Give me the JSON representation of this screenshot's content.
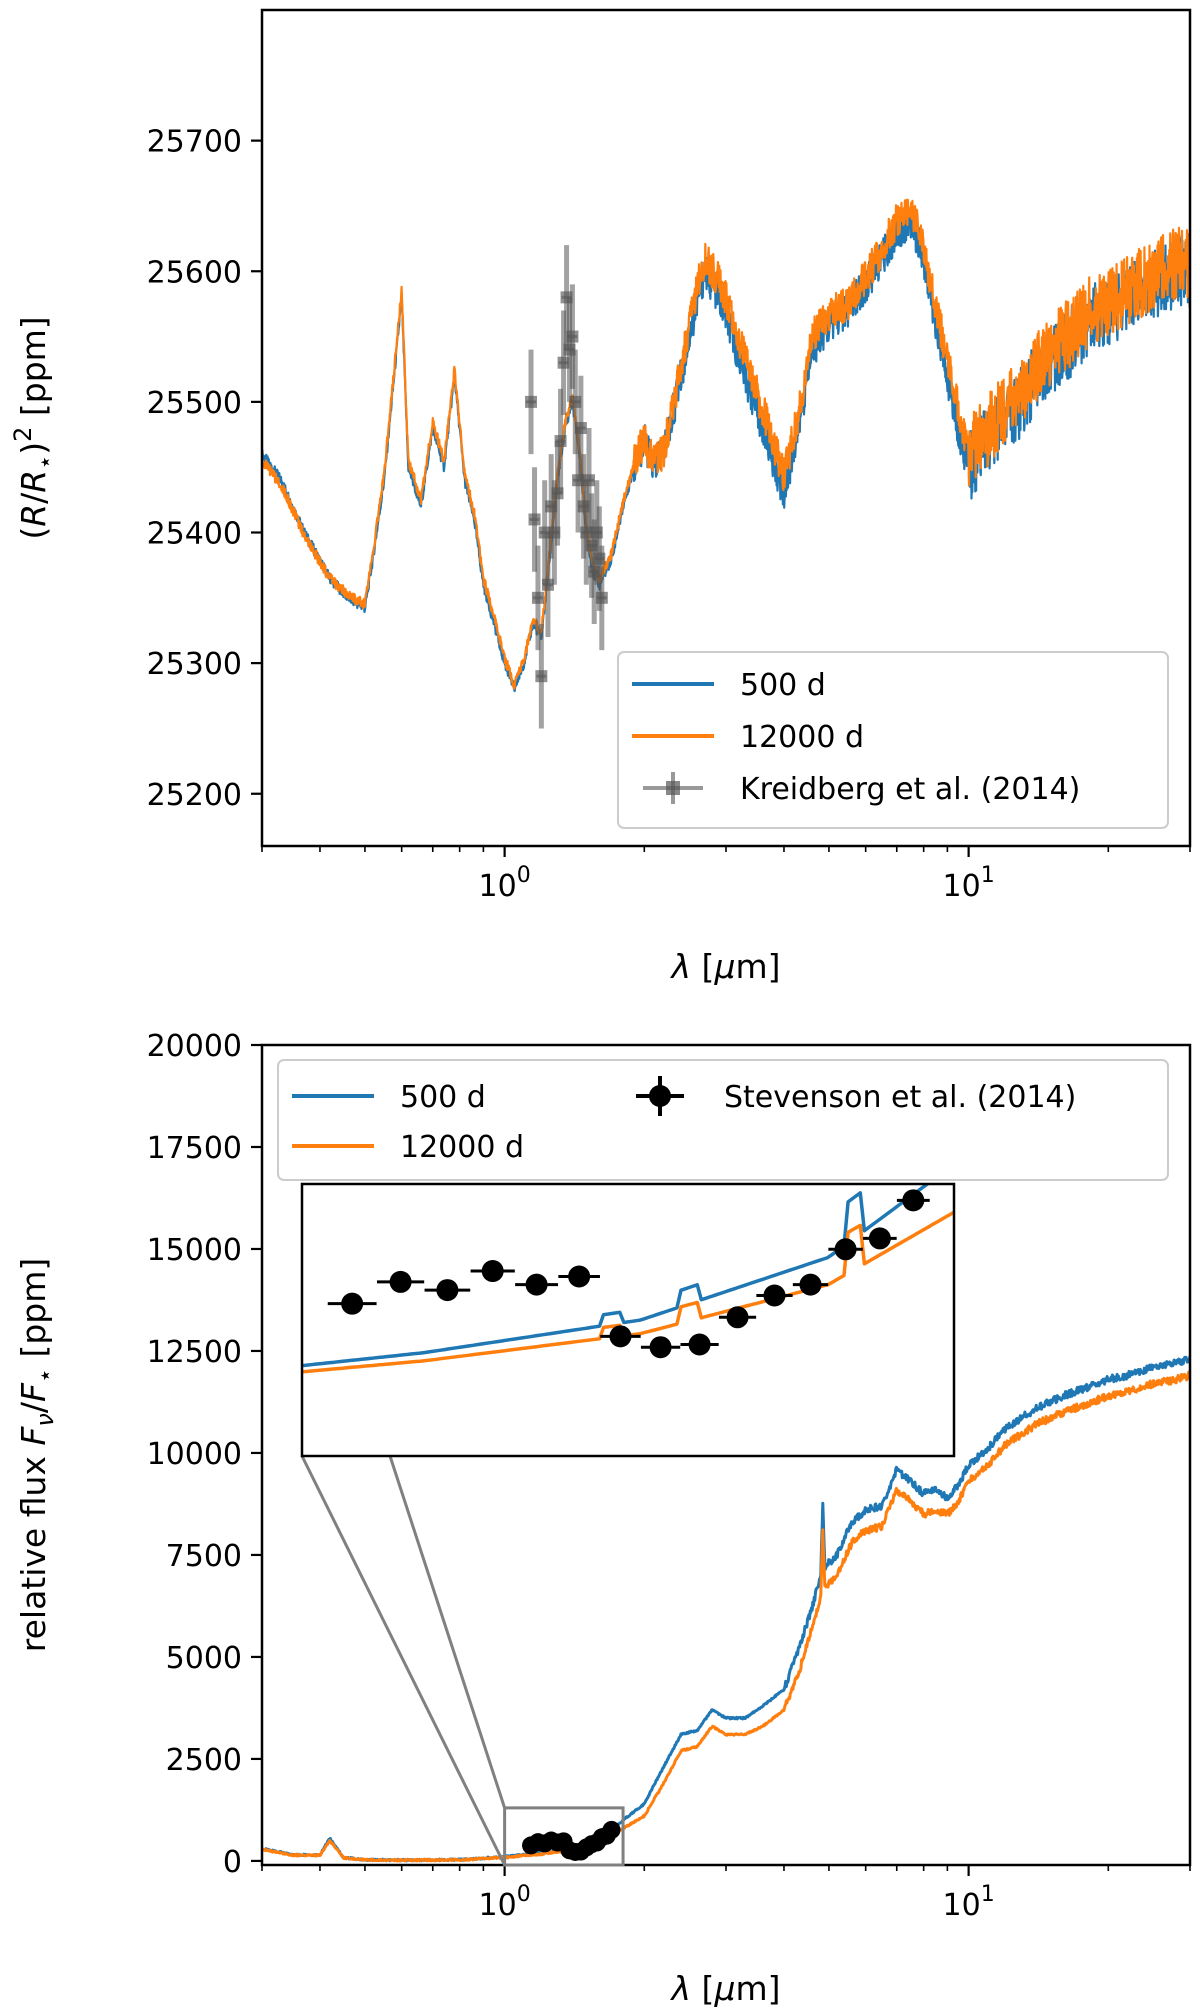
{
  "chart_data": [
    {
      "type": "line",
      "panel": "top",
      "xlabel": "λ [μm]",
      "ylabel": "(R/R⋆)² [ppm]",
      "xscale": "log",
      "xlim": [
        0.3,
        30
      ],
      "ylim": [
        25160,
        25800
      ],
      "yticks": [
        25200,
        25300,
        25400,
        25500,
        25600,
        25700
      ],
      "xticks": [
        {
          "value": 1,
          "label": "10",
          "sup": "0"
        },
        {
          "value": 10,
          "label": "10",
          "sup": "1"
        }
      ],
      "legend_position": "lower-right",
      "series": [
        {
          "name": "500 d",
          "color": "#1f77b4",
          "x": [
            0.3,
            0.33,
            0.37,
            0.42,
            0.46,
            0.5,
            0.52,
            0.55,
            0.6,
            0.62,
            0.66,
            0.7,
            0.74,
            0.78,
            0.82,
            0.86,
            0.9,
            0.95,
            1.0,
            1.05,
            1.1,
            1.15,
            1.2,
            1.25,
            1.3,
            1.35,
            1.4,
            1.45,
            1.5,
            1.55,
            1.6,
            1.7,
            1.8,
            1.9,
            2.0,
            2.1,
            2.2,
            2.3,
            2.4,
            2.5,
            2.7,
            2.9,
            3.1,
            3.3,
            3.6,
            4.0,
            4.3,
            4.6,
            5.0,
            5.5,
            6.0,
            6.5,
            7.0,
            7.5,
            8.0,
            8.5,
            9.0,
            9.5,
            10.0,
            11.0,
            12.0,
            13.0,
            14.0,
            16.0,
            18.0,
            20.0,
            22.0,
            25.0,
            28.0,
            30.0
          ],
          "y": [
            25460,
            25440,
            25400,
            25365,
            25350,
            25342,
            25380,
            25440,
            25580,
            25450,
            25420,
            25480,
            25450,
            25520,
            25440,
            25410,
            25360,
            25330,
            25300,
            25280,
            25300,
            25330,
            25320,
            25380,
            25440,
            25480,
            25500,
            25460,
            25400,
            25370,
            25360,
            25380,
            25420,
            25450,
            25470,
            25450,
            25460,
            25490,
            25520,
            25550,
            25600,
            25580,
            25550,
            25520,
            25480,
            25430,
            25480,
            25540,
            25560,
            25570,
            25590,
            25610,
            25630,
            25640,
            25610,
            25560,
            25520,
            25480,
            25450,
            25470,
            25490,
            25500,
            25520,
            25540,
            25560,
            25570,
            25580,
            25590,
            25600,
            25600
          ]
        },
        {
          "name": "12000 d",
          "color": "#ff7f0e",
          "x": [
            0.3,
            0.33,
            0.37,
            0.42,
            0.46,
            0.5,
            0.52,
            0.55,
            0.6,
            0.62,
            0.66,
            0.7,
            0.74,
            0.78,
            0.82,
            0.86,
            0.9,
            0.95,
            1.0,
            1.05,
            1.1,
            1.15,
            1.2,
            1.25,
            1.3,
            1.35,
            1.4,
            1.45,
            1.5,
            1.55,
            1.6,
            1.7,
            1.8,
            1.9,
            2.0,
            2.1,
            2.2,
            2.3,
            2.4,
            2.5,
            2.7,
            2.9,
            3.1,
            3.3,
            3.6,
            4.0,
            4.3,
            4.6,
            5.0,
            5.5,
            6.0,
            6.5,
            7.0,
            7.5,
            8.0,
            8.5,
            9.0,
            9.5,
            10.0,
            11.0,
            12.0,
            13.0,
            14.0,
            16.0,
            18.0,
            20.0,
            22.0,
            25.0,
            28.0,
            30.0
          ],
          "y": [
            25455,
            25436,
            25398,
            25365,
            25352,
            25345,
            25384,
            25445,
            25585,
            25455,
            25425,
            25485,
            25455,
            25525,
            25445,
            25415,
            25365,
            25335,
            25304,
            25283,
            25303,
            25333,
            25324,
            25384,
            25444,
            25484,
            25503,
            25463,
            25404,
            25374,
            25364,
            25384,
            25423,
            25452,
            25472,
            25452,
            25462,
            25494,
            25526,
            25560,
            25610,
            25592,
            25565,
            25534,
            25494,
            25444,
            25490,
            25550,
            25566,
            25576,
            25596,
            25616,
            25638,
            25648,
            25620,
            25572,
            25534,
            25494,
            25462,
            25478,
            25497,
            25508,
            25527,
            25548,
            25567,
            25578,
            25586,
            25596,
            25606,
            25606
          ]
        },
        {
          "name": "Kreidberg et al. (2014)",
          "color": "#555555",
          "type": "errorbar",
          "x": [
            1.14,
            1.16,
            1.18,
            1.2,
            1.22,
            1.24,
            1.26,
            1.28,
            1.3,
            1.32,
            1.34,
            1.36,
            1.38,
            1.4,
            1.42,
            1.44,
            1.46,
            1.48,
            1.5,
            1.52,
            1.54,
            1.56,
            1.58,
            1.6,
            1.62
          ],
          "y": [
            25500,
            25410,
            25350,
            25290,
            25400,
            25360,
            25420,
            25400,
            25430,
            25470,
            25530,
            25580,
            25540,
            25550,
            25500,
            25440,
            25480,
            25420,
            25400,
            25440,
            25390,
            25370,
            25400,
            25380,
            25350
          ],
          "yerr": [
            40,
            40,
            40,
            40,
            40,
            40,
            40,
            40,
            40,
            40,
            40,
            40,
            40,
            40,
            40,
            40,
            40,
            40,
            40,
            40,
            40,
            40,
            40,
            40,
            40
          ]
        }
      ]
    },
    {
      "type": "line",
      "panel": "bottom",
      "xlabel": "λ [μm]",
      "ylabel": "relative flux Fν/F⋆  [ppm]",
      "xscale": "log",
      "xlim": [
        0.3,
        30
      ],
      "ylim": [
        -100,
        20000
      ],
      "yticks": [
        0,
        2500,
        5000,
        7500,
        10000,
        12500,
        15000,
        17500,
        20000
      ],
      "xticks": [
        {
          "value": 1,
          "label": "10",
          "sup": "0"
        },
        {
          "value": 10,
          "label": "10",
          "sup": "1"
        }
      ],
      "legend_position": "top",
      "series": [
        {
          "name": "500 d",
          "color": "#1f77b4",
          "x": [
            0.3,
            0.35,
            0.4,
            0.42,
            0.45,
            0.5,
            0.6,
            0.8,
            1.0,
            1.2,
            1.4,
            1.6,
            1.8,
            2.0,
            2.2,
            2.4,
            2.6,
            2.8,
            3.0,
            3.3,
            3.6,
            4.0,
            4.3,
            4.6,
            4.8,
            4.85,
            4.9,
            5.2,
            5.6,
            6.0,
            6.5,
            7.0,
            7.5,
            8.0,
            8.5,
            9.0,
            9.5,
            10.0,
            11.0,
            12.0,
            14.0,
            16.0,
            18.0,
            20.0,
            22.0,
            25.0,
            28.0,
            30.0
          ],
          "y": [
            300,
            150,
            150,
            550,
            80,
            30,
            20,
            30,
            100,
            200,
            320,
            550,
            1000,
            1400,
            2300,
            3100,
            3200,
            3700,
            3500,
            3500,
            3800,
            4200,
            5200,
            6200,
            7000,
            8800,
            7200,
            7500,
            8300,
            8600,
            8700,
            9600,
            9300,
            9000,
            9100,
            8900,
            9200,
            9700,
            10100,
            10600,
            11100,
            11400,
            11600,
            11800,
            11900,
            12100,
            12200,
            12300
          ]
        },
        {
          "name": "12000 d",
          "color": "#ff7f0e",
          "x": [
            0.3,
            0.35,
            0.4,
            0.42,
            0.45,
            0.5,
            0.6,
            0.8,
            1.0,
            1.2,
            1.4,
            1.6,
            1.8,
            2.0,
            2.2,
            2.4,
            2.6,
            2.8,
            3.0,
            3.3,
            3.6,
            4.0,
            4.3,
            4.6,
            4.8,
            4.85,
            4.9,
            5.2,
            5.6,
            6.0,
            6.5,
            7.0,
            7.5,
            8.0,
            8.5,
            9.0,
            9.5,
            10.0,
            11.0,
            12.0,
            14.0,
            16.0,
            18.0,
            20.0,
            22.0,
            25.0,
            28.0,
            30.0
          ],
          "y": [
            280,
            140,
            140,
            500,
            75,
            28,
            18,
            25,
            85,
            170,
            270,
            450,
            800,
            1100,
            1900,
            2700,
            2800,
            3300,
            3100,
            3100,
            3300,
            3700,
            4600,
            5700,
            6500,
            8100,
            6700,
            7000,
            7800,
            8100,
            8200,
            9100,
            8800,
            8500,
            8600,
            8500,
            8800,
            9300,
            9700,
            10200,
            10700,
            11000,
            11200,
            11400,
            11500,
            11700,
            11800,
            11900
          ]
        },
        {
          "name": "Stevenson et al. (2014)",
          "color": "#000000",
          "type": "errorbar",
          "x": [
            1.14,
            1.18,
            1.22,
            1.26,
            1.3,
            1.34,
            1.38,
            1.42,
            1.46,
            1.5,
            1.54,
            1.58,
            1.62,
            1.66,
            1.7
          ],
          "y": [
            380,
            460,
            430,
            500,
            450,
            480,
            260,
            220,
            230,
            330,
            410,
            450,
            580,
            620,
            760
          ],
          "xerr": [
            0.02,
            0.02,
            0.02,
            0.02,
            0.02,
            0.02,
            0.02,
            0.02,
            0.02,
            0.02,
            0.02,
            0.02,
            0.02,
            0.02,
            0.02
          ],
          "yerr": [
            40,
            40,
            40,
            40,
            40,
            40,
            40,
            40,
            40,
            40,
            40,
            40,
            40,
            40,
            40
          ]
        }
      ],
      "inset": {
        "xlim": [
          1.1,
          1.75
        ],
        "ylim": [
          0,
          1000
        ]
      }
    }
  ]
}
